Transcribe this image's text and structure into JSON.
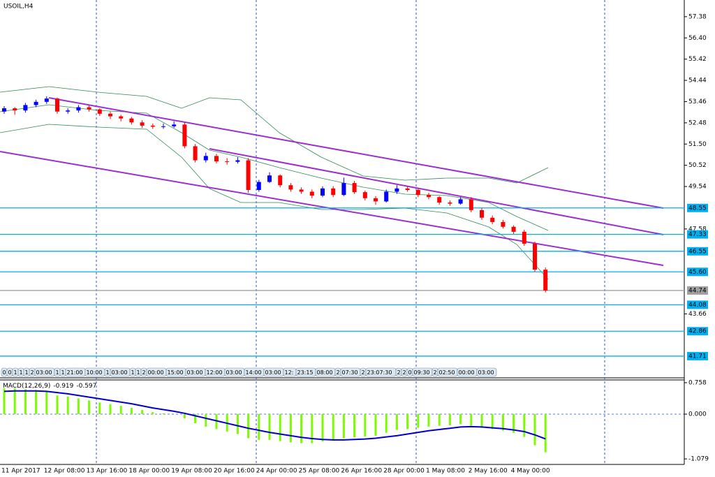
{
  "chart_data": {
    "type": "candlestick",
    "title": "USOIL,H4",
    "up_color": "#0000ff",
    "down_color": "#ff0000",
    "level_color": "#00b0f0",
    "current_color": "#a0a0a0",
    "ylim": [
      40.74,
      58.15
    ],
    "yticks": [
      57.38,
      {
        "value": 56.4,
        "label": "56.40"
      },
      55.42,
      54.44,
      53.46,
      52.48,
      {
        "value": 51.5,
        "label": "51.50"
      },
      50.52,
      49.54,
      47.58,
      43.66
    ],
    "levels": [
      48.55,
      47.33,
      46.55,
      {
        "value": 45.6,
        "label": "45.60"
      },
      44.08,
      42.86,
      41.71
    ],
    "current_price": 44.74,
    "x_labels": [
      "11 Apr 2017",
      "12 Apr 08:00",
      "13 Apr 16:00",
      "18 Apr 00:00",
      "19 Apr 08:00",
      "20 Apr 16:00",
      "24 Apr 00:00",
      "25 Apr 08:00",
      "26 Apr 16:00",
      "28 Apr 00:00",
      "1 May 08:00",
      "2 May 16:00",
      "4 May 00:00"
    ],
    "time_strip": [
      "0",
      "0",
      "1",
      "1",
      "1",
      "2",
      "03:00",
      "1",
      "1",
      "21:00",
      "10:00",
      "1",
      "03:00",
      "1",
      "1",
      "2",
      "00:00",
      "15:00",
      "03:00",
      "12:00",
      "03:00",
      "14:00",
      "03:00",
      "12:",
      "23:15",
      "08:00",
      "2",
      "07:30",
      "2",
      "23:07:30",
      "2",
      "2",
      "0",
      "09:30",
      "2",
      "02:50",
      "00:00",
      "03:00"
    ],
    "candles": [
      [
        53.0,
        53.25,
        52.9,
        53.15
      ],
      [
        53.15,
        53.2,
        52.85,
        53.05
      ],
      [
        53.05,
        53.4,
        52.95,
        53.3
      ],
      [
        53.3,
        53.55,
        53.2,
        53.45
      ],
      [
        53.45,
        53.7,
        53.35,
        53.6
      ],
      [
        53.6,
        53.65,
        52.9,
        53.0
      ],
      [
        53.0,
        53.15,
        52.9,
        53.05
      ],
      [
        53.05,
        53.3,
        52.95,
        53.2
      ],
      [
        53.2,
        53.3,
        53.0,
        53.1
      ],
      [
        53.1,
        53.15,
        52.8,
        52.9
      ],
      [
        52.9,
        53.0,
        52.65,
        52.78
      ],
      [
        52.78,
        52.85,
        52.55,
        52.68
      ],
      [
        52.68,
        52.75,
        52.4,
        52.5
      ],
      [
        52.5,
        52.6,
        52.25,
        52.35
      ],
      [
        52.35,
        52.45,
        52.2,
        52.3
      ],
      [
        52.3,
        52.45,
        52.2,
        52.32
      ],
      [
        52.32,
        52.55,
        52.25,
        52.4
      ],
      [
        52.4,
        52.5,
        51.3,
        51.4
      ],
      [
        51.4,
        51.5,
        50.65,
        50.75
      ],
      [
        50.75,
        51.1,
        50.65,
        50.95
      ],
      [
        50.95,
        51.05,
        50.6,
        50.7
      ],
      [
        50.7,
        50.85,
        50.55,
        50.68
      ],
      [
        50.68,
        50.9,
        50.6,
        50.75
      ],
      [
        50.75,
        50.85,
        49.25,
        49.38
      ],
      [
        49.38,
        49.85,
        49.3,
        49.75
      ],
      [
        49.75,
        50.2,
        49.7,
        50.05
      ],
      [
        50.05,
        50.1,
        49.5,
        49.6
      ],
      [
        49.6,
        49.7,
        49.3,
        49.4
      ],
      [
        49.4,
        49.5,
        49.2,
        49.3
      ],
      [
        49.3,
        49.4,
        49.0,
        49.12
      ],
      [
        49.12,
        49.55,
        49.05,
        49.45
      ],
      [
        49.45,
        49.55,
        49.05,
        49.15
      ],
      [
        49.15,
        49.95,
        49.1,
        49.7
      ],
      [
        49.7,
        49.8,
        49.2,
        49.28
      ],
      [
        49.28,
        49.35,
        48.9,
        49.0
      ],
      [
        49.0,
        49.1,
        48.7,
        48.85
      ],
      [
        48.85,
        49.4,
        48.8,
        49.3
      ],
      [
        49.3,
        49.6,
        49.2,
        49.45
      ],
      [
        49.45,
        49.55,
        49.3,
        49.38
      ],
      [
        49.38,
        49.45,
        49.05,
        49.15
      ],
      [
        49.15,
        49.25,
        48.95,
        49.05
      ],
      [
        49.05,
        49.1,
        48.7,
        48.8
      ],
      [
        48.8,
        48.9,
        48.65,
        48.75
      ],
      [
        48.75,
        49.05,
        48.7,
        48.95
      ],
      [
        48.95,
        49.05,
        48.35,
        48.45
      ],
      [
        48.45,
        48.55,
        48.0,
        48.1
      ],
      [
        48.1,
        48.2,
        47.8,
        47.9
      ],
      [
        47.9,
        48.0,
        47.6,
        47.68
      ],
      [
        47.68,
        47.75,
        47.35,
        47.45
      ],
      [
        47.45,
        47.55,
        46.8,
        46.9
      ],
      [
        46.9,
        47.0,
        45.6,
        45.7
      ],
      [
        45.7,
        45.8,
        44.65,
        44.74
      ]
    ],
    "macd": {
      "title": "MACD(12,26,9)",
      "value_label": "-0.919",
      "signal_label": "-0.597",
      "hist_color": "#7cfc00",
      "signal_color": "#0000cd",
      "ylim": [
        -1.212,
        0.808
      ],
      "yticks": [
        0.758,
        {
          "value": 0,
          "label": "0.000"
        },
        -1.079
      ],
      "hist": [
        0.62,
        0.62,
        0.6,
        0.58,
        0.55,
        0.45,
        0.42,
        0.38,
        0.33,
        0.28,
        0.24,
        0.2,
        0.15,
        0.1,
        0.05,
        0.02,
        0.0,
        -0.1,
        -0.22,
        -0.3,
        -0.36,
        -0.42,
        -0.48,
        -0.58,
        -0.62,
        -0.62,
        -0.65,
        -0.68,
        -0.7,
        -0.7,
        -0.66,
        -0.64,
        -0.58,
        -0.56,
        -0.54,
        -0.52,
        -0.45,
        -0.38,
        -0.36,
        -0.33,
        -0.3,
        -0.28,
        -0.27,
        -0.24,
        -0.28,
        -0.33,
        -0.36,
        -0.4,
        -0.45,
        -0.55,
        -0.75,
        -0.919
      ],
      "signal": [
        0.55,
        0.56,
        0.56,
        0.56,
        0.55,
        0.52,
        0.49,
        0.45,
        0.41,
        0.37,
        0.33,
        0.29,
        0.25,
        0.2,
        0.15,
        0.11,
        0.07,
        0.02,
        -0.04,
        -0.1,
        -0.16,
        -0.22,
        -0.28,
        -0.34,
        -0.39,
        -0.44,
        -0.48,
        -0.52,
        -0.56,
        -0.59,
        -0.61,
        -0.62,
        -0.62,
        -0.61,
        -0.6,
        -0.58,
        -0.55,
        -0.52,
        -0.48,
        -0.44,
        -0.4,
        -0.37,
        -0.34,
        -0.31,
        -0.3,
        -0.31,
        -0.33,
        -0.35,
        -0.38,
        -0.42,
        -0.5,
        -0.597
      ]
    }
  }
}
